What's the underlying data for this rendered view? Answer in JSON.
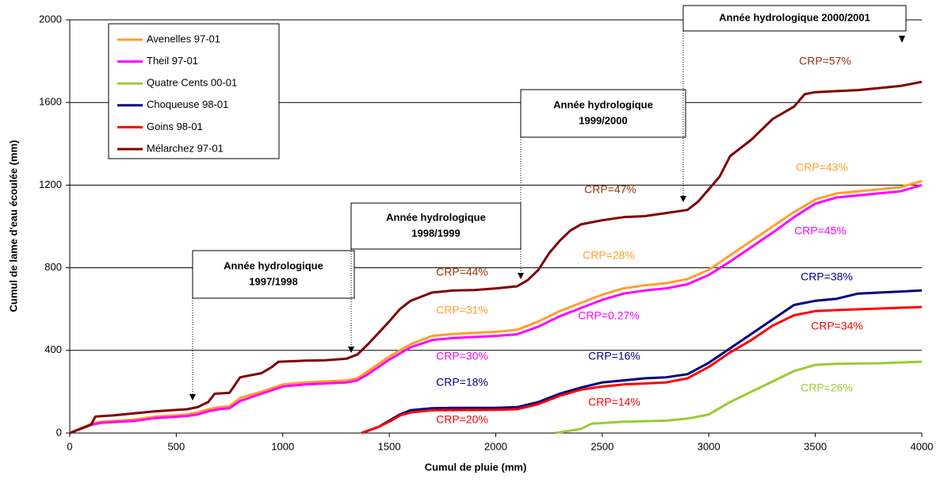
{
  "chart_data": {
    "type": "line",
    "xlabel": "Cumul de pluie (mm)",
    "ylabel": "Cumul de lame d'eau écoulée (mm)",
    "xlim": [
      0,
      4000
    ],
    "xticks": [
      0,
      500,
      1000,
      1500,
      2000,
      2500,
      3000,
      3500,
      4000
    ],
    "ylim": [
      0,
      2000
    ],
    "yticks": [
      0,
      400,
      800,
      1200,
      1600,
      2000
    ],
    "grid": true,
    "legend": "upper left",
    "series": [
      {
        "name": "Avenelles 97-01",
        "color": "#ff9f2a",
        "x": [
          0,
          100,
          150,
          300,
          400,
          550,
          600,
          650,
          700,
          750,
          800,
          900,
          1000,
          1100,
          1200,
          1300,
          1350,
          1400,
          1500,
          1600,
          1700,
          1800,
          1900,
          2000,
          2100,
          2200,
          2300,
          2400,
          2500,
          2600,
          2700,
          2800,
          2900,
          3000,
          3100,
          3200,
          3300,
          3400,
          3500,
          3600,
          3700,
          3800,
          3900,
          4000
        ],
        "values": [
          0,
          45,
          55,
          65,
          80,
          90,
          100,
          115,
          125,
          130,
          170,
          200,
          235,
          245,
          250,
          255,
          265,
          300,
          370,
          430,
          470,
          480,
          485,
          490,
          500,
          540,
          590,
          630,
          670,
          700,
          715,
          725,
          745,
          790,
          860,
          930,
          1000,
          1070,
          1130,
          1160,
          1170,
          1180,
          1190,
          1220
        ]
      },
      {
        "name": "Theil 97-01",
        "color": "#ff00ff",
        "x": [
          0,
          100,
          150,
          300,
          400,
          550,
          600,
          650,
          700,
          750,
          800,
          900,
          1000,
          1100,
          1200,
          1300,
          1350,
          1400,
          1500,
          1600,
          1700,
          1800,
          1900,
          2000,
          2100,
          2200,
          2300,
          2400,
          2500,
          2600,
          2700,
          2800,
          2900,
          3000,
          3100,
          3200,
          3300,
          3400,
          3500,
          3600,
          3700,
          3800,
          3900,
          4000
        ],
        "values": [
          0,
          40,
          50,
          58,
          72,
          82,
          90,
          105,
          115,
          120,
          155,
          190,
          225,
          235,
          240,
          245,
          255,
          285,
          355,
          415,
          450,
          460,
          465,
          470,
          478,
          515,
          565,
          605,
          645,
          675,
          690,
          700,
          720,
          765,
          830,
          900,
          970,
          1045,
          1110,
          1140,
          1150,
          1160,
          1170,
          1200
        ]
      },
      {
        "name": "Quatre Cents 00-01",
        "color": "#99cc33",
        "x": [
          2280,
          2400,
          2450,
          2600,
          2800,
          2900,
          3000,
          3100,
          3200,
          3300,
          3400,
          3500,
          3600,
          3800,
          4000
        ],
        "values": [
          0,
          20,
          45,
          55,
          60,
          70,
          90,
          150,
          200,
          250,
          300,
          330,
          335,
          338,
          345
        ]
      },
      {
        "name": "Choqueuse 98-01",
        "color": "#000080",
        "x": [
          1370,
          1450,
          1500,
          1550,
          1600,
          1700,
          1800,
          2000,
          2100,
          2200,
          2300,
          2400,
          2500,
          2600,
          2700,
          2800,
          2900,
          3000,
          3100,
          3200,
          3300,
          3400,
          3500,
          3600,
          3700,
          3800,
          4000
        ],
        "values": [
          0,
          30,
          60,
          90,
          110,
          120,
          122,
          122,
          125,
          150,
          190,
          220,
          245,
          255,
          265,
          270,
          285,
          340,
          410,
          480,
          550,
          620,
          640,
          650,
          675,
          680,
          690
        ]
      },
      {
        "name": "Goins 98-01",
        "color": "#ff0000",
        "x": [
          1370,
          1450,
          1500,
          1550,
          1600,
          1700,
          2000,
          2100,
          2200,
          2300,
          2400,
          2500,
          2600,
          2700,
          2800,
          2900,
          3000,
          3100,
          3200,
          3300,
          3400,
          3500,
          3600,
          4000
        ],
        "values": [
          0,
          30,
          55,
          85,
          100,
          110,
          112,
          115,
          140,
          180,
          210,
          225,
          235,
          240,
          245,
          265,
          320,
          390,
          450,
          520,
          570,
          590,
          595,
          610
        ]
      },
      {
        "name": "Mélarchez 97-01",
        "color": "#800000",
        "x": [
          0,
          100,
          120,
          200,
          300,
          400,
          550,
          600,
          650,
          680,
          750,
          800,
          900,
          950,
          980,
          1100,
          1200,
          1300,
          1350,
          1400,
          1500,
          1550,
          1600,
          1650,
          1700,
          1800,
          1900,
          2000,
          2100,
          2150,
          2200,
          2250,
          2300,
          2350,
          2400,
          2500,
          2600,
          2700,
          2800,
          2900,
          2950,
          3000,
          3050,
          3100,
          3200,
          3300,
          3400,
          3450,
          3500,
          3600,
          3700,
          3800,
          3900,
          3950,
          4000
        ],
        "values": [
          0,
          40,
          80,
          85,
          95,
          105,
          115,
          125,
          150,
          190,
          195,
          270,
          290,
          320,
          345,
          350,
          352,
          360,
          380,
          430,
          540,
          600,
          640,
          660,
          680,
          690,
          692,
          700,
          710,
          740,
          790,
          870,
          930,
          980,
          1010,
          1030,
          1045,
          1050,
          1065,
          1080,
          1120,
          1180,
          1240,
          1340,
          1420,
          1520,
          1580,
          1640,
          1650,
          1655,
          1660,
          1670,
          1680,
          1690,
          1700
        ]
      }
    ],
    "annotations": [
      {
        "text": "CRP=57%",
        "color": "#993300"
      },
      {
        "text": "CRP=43%",
        "color": "#ff9f2a"
      },
      {
        "text": "CRP=47%",
        "color": "#993300"
      },
      {
        "text": "CRP=45%",
        "color": "#ff00ff"
      },
      {
        "text": "CRP=28%",
        "color": "#ff9f2a"
      },
      {
        "text": "CRP=38%",
        "color": "#000080"
      },
      {
        "text": "CRP=44%",
        "color": "#993300"
      },
      {
        "text": "CRP=31%",
        "color": "#ff9f2a"
      },
      {
        "text": "CRP=0.27%",
        "color": "#ff00ff"
      },
      {
        "text": "CRP=34%",
        "color": "#ff0000"
      },
      {
        "text": "CRP=30%",
        "color": "#ff00ff"
      },
      {
        "text": "CRP=16%",
        "color": "#000080"
      },
      {
        "text": "CRP=18%",
        "color": "#000080"
      },
      {
        "text": "CRP=14%",
        "color": "#ff0000"
      },
      {
        "text": "CRP=26%",
        "color": "#99cc33"
      },
      {
        "text": "CRP=20%",
        "color": "#ff0000"
      }
    ],
    "boxes": [
      {
        "lines": [
          "Année hydrologique",
          "1997/1998"
        ]
      },
      {
        "lines": [
          "Année hydrologique",
          "1998/1999"
        ]
      },
      {
        "lines": [
          "Année hydrologique",
          "1999/2000"
        ]
      },
      {
        "lines": [
          "Année hydrologique 2000/2001"
        ]
      }
    ]
  }
}
